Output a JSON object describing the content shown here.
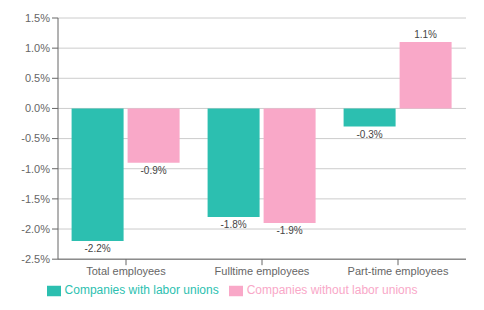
{
  "chart_data": {
    "type": "bar",
    "categories": [
      "Total employees",
      "Fulltime employees",
      "Part-time employees"
    ],
    "series": [
      {
        "name": "Companies with labor unions",
        "color": "#2CBFB0",
        "values": [
          -2.2,
          -1.8,
          -0.3
        ],
        "value_labels": [
          "-2.2%",
          "-1.8%",
          "-0.3%"
        ]
      },
      {
        "name": "Companies without labor unions",
        "color": "#F9A8C8",
        "values": [
          -0.9,
          -1.9,
          1.1
        ],
        "value_labels": [
          "-0.9%",
          "-1.9%",
          "1.1%"
        ]
      }
    ],
    "ylim": [
      -2.5,
      1.5
    ],
    "yticks": [
      {
        "value": -2.5,
        "label": "-2.5%"
      },
      {
        "value": -2.0,
        "label": "-2.0%"
      },
      {
        "value": -1.5,
        "label": "-1.5%"
      },
      {
        "value": -1.0,
        "label": "-1.0%"
      },
      {
        "value": -0.5,
        "label": "-0.5%"
      },
      {
        "value": 0.0,
        "label": "0.0%"
      },
      {
        "value": 0.5,
        "label": "0.5%"
      },
      {
        "value": 1.0,
        "label": "1.0%"
      },
      {
        "value": 1.5,
        "label": "1.5%"
      }
    ],
    "grid": true,
    "legend": "bottom",
    "data_labels": true
  }
}
